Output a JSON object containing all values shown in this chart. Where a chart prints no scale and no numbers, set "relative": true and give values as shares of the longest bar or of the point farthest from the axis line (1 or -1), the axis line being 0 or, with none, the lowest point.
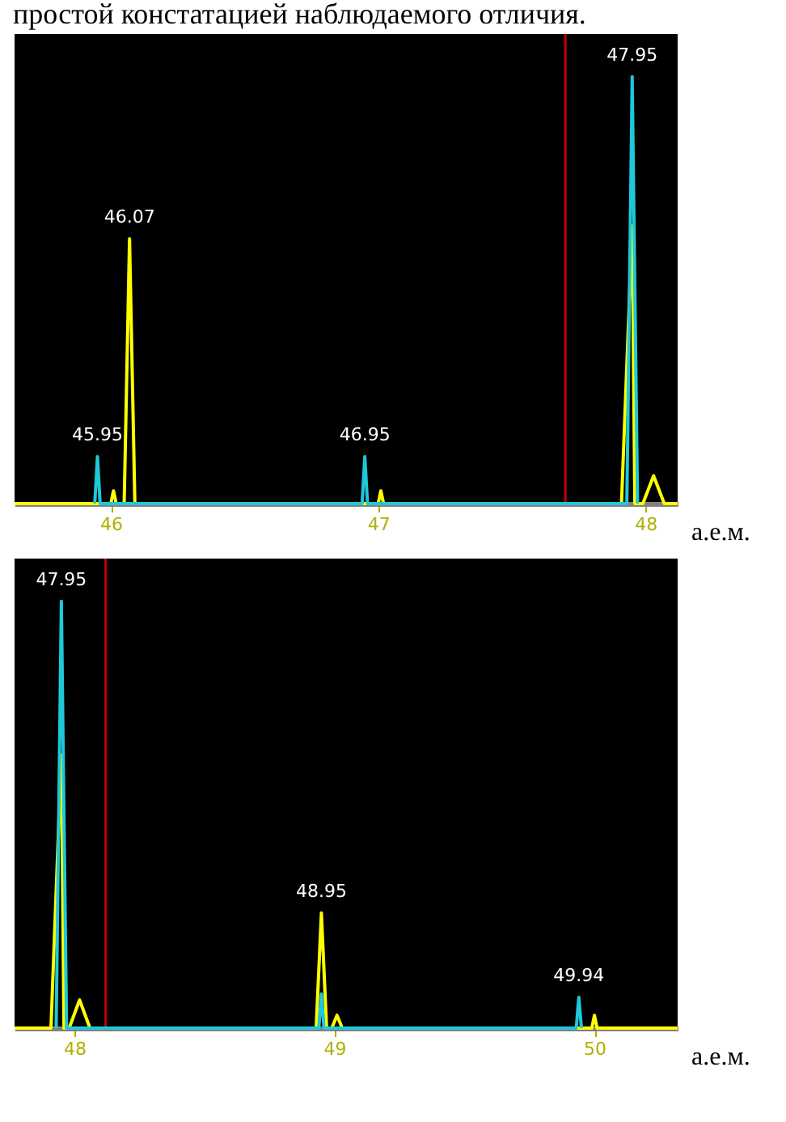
{
  "chart_data": [
    {
      "type": "line",
      "relative": true,
      "xlabel": "а.е.м.",
      "xlim": [
        45.64,
        48.12
      ],
      "xticks": [
        46,
        47,
        48
      ],
      "tick_labels": "x",
      "grid": false,
      "marker": "none",
      "line_style": "solid",
      "annotations": [
        "простой констатацией наблюдаемого отличия.",
        {
          "text": "45.95",
          "x": 45.95,
          "y": 0.11
        },
        {
          "text": "46.07",
          "x": 46.07,
          "y": 0.62
        },
        {
          "text": "46.95",
          "x": 46.95,
          "y": 0.11
        },
        {
          "text": "47.95",
          "x": 47.95,
          "y": 1
        }
      ],
      "ref_lines": [
        {
          "axis": "x",
          "value": 47.7,
          "color": "#c00000"
        }
      ],
      "series": [
        {
          "color": "#ffff00",
          "x": [
            45.64,
            46.0,
            46.01,
            46.02,
            46.05,
            46.07,
            46.09,
            47.0,
            47.01,
            47.02,
            47.91,
            47.95,
            47.96,
            47.99,
            48.03,
            48.07,
            48.12
          ],
          "values": [
            0,
            0,
            0.03,
            0,
            0,
            0.62,
            0,
            0,
            0.03,
            0,
            0,
            0.65,
            0,
            0,
            0.065,
            0,
            0
          ]
        },
        {
          "color": "#1ec8d8",
          "x": [
            45.94,
            45.95,
            45.96,
            46.94,
            46.95,
            46.96,
            47.93,
            47.95,
            47.97
          ],
          "values": [
            0,
            0.11,
            0,
            0,
            0.11,
            0,
            0,
            1,
            0
          ]
        }
      ]
    },
    {
      "type": "line",
      "relative": true,
      "xlabel": "а.е.м.",
      "xlim": [
        47.77,
        50.32
      ],
      "xticks": [
        48,
        49,
        50
      ],
      "tick_labels": "x",
      "grid": false,
      "marker": "none",
      "line_style": "solid",
      "annotations": [
        {
          "text": "47.95",
          "x": 47.95,
          "y": 1
        },
        {
          "text": "48.95",
          "x": 48.95,
          "y": 0.27
        },
        {
          "text": "49.94",
          "x": 49.94,
          "y": 0.072
        }
      ],
      "ref_lines": [
        {
          "axis": "x",
          "value": 48.12,
          "color": "#c00000"
        }
      ],
      "series": [
        {
          "color": "#ffff00",
          "x": [
            47.77,
            47.91,
            47.95,
            47.96,
            47.98,
            48.02,
            48.06,
            48.93,
            48.95,
            48.97,
            48.99,
            49.01,
            49.03,
            49.99,
            50.0,
            50.01,
            50.32
          ],
          "values": [
            0,
            0,
            0.64,
            0,
            0,
            0.066,
            0,
            0,
            0.27,
            0,
            0,
            0.03,
            0,
            0,
            0.03,
            0,
            0
          ]
        },
        {
          "color": "#1ec8d8",
          "x": [
            47.93,
            47.95,
            47.97,
            48.94,
            48.95,
            48.96,
            49.93,
            49.94,
            49.95
          ],
          "values": [
            0,
            1,
            0,
            0,
            0.08,
            0,
            0,
            0.072,
            0
          ]
        }
      ]
    }
  ]
}
